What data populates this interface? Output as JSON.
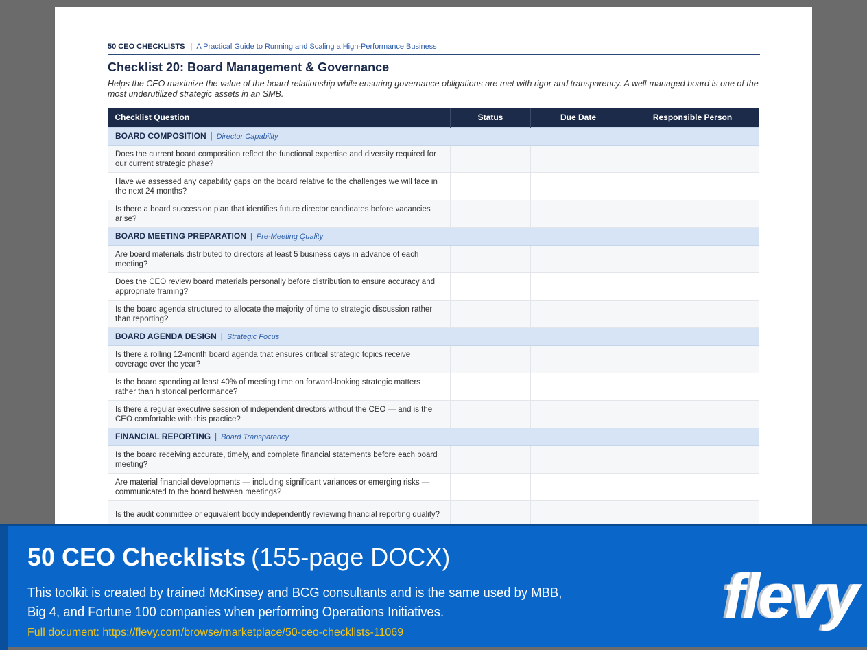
{
  "header": {
    "brand": "50 CEO CHECKLISTS",
    "separator": "|",
    "subtitle": "A Practical Guide to Running and Scaling a High-Performance Business"
  },
  "title": "Checklist 20: Board Management & Governance",
  "description": "Helps the CEO maximize the value of the board relationship while ensuring governance obligations are met with rigor and transparency. A well-managed board is one of the most underutilized strategic assets in an SMB.",
  "table": {
    "columns": [
      "Checklist Question",
      "Status",
      "Due Date",
      "Responsible Person"
    ],
    "sections": [
      {
        "name": "BOARD COMPOSITION",
        "separator": "|",
        "subtitle": "Director Capability",
        "questions": [
          "Does the current board composition reflect the functional expertise and diversity required for our current strategic phase?",
          "Have we assessed any capability gaps on the board relative to the challenges we will face in the next 24 months?",
          "Is there a board succession plan that identifies future director candidates before vacancies arise?"
        ]
      },
      {
        "name": "BOARD MEETING PREPARATION",
        "separator": "|",
        "subtitle": "Pre-Meeting Quality",
        "questions": [
          "Are board materials distributed to directors at least 5 business days in advance of each meeting?",
          "Does the CEO review board materials personally before distribution to ensure accuracy and appropriate framing?",
          "Is the board agenda structured to allocate the majority of time to strategic discussion rather than reporting?"
        ]
      },
      {
        "name": "BOARD AGENDA DESIGN",
        "separator": "|",
        "subtitle": "Strategic Focus",
        "questions": [
          "Is there a rolling 12-month board agenda that ensures critical strategic topics receive coverage over the year?",
          "Is the board spending at least 40% of meeting time on forward-looking strategic matters rather than historical performance?",
          "Is there a regular executive session of independent directors without the CEO — and is the CEO comfortable with this practice?"
        ]
      },
      {
        "name": "FINANCIAL REPORTING",
        "separator": "|",
        "subtitle": "Board Transparency",
        "questions": [
          "Is the board receiving accurate, timely, and complete financial statements before each board meeting?",
          "Are material financial developments — including significant variances or emerging risks — communicated to the board between meetings?",
          "Is the audit committee or equivalent body independently reviewing financial reporting quality?"
        ]
      }
    ]
  },
  "banner": {
    "title": "50 CEO Checklists",
    "format": "(155-page DOCX)",
    "description": [
      "This toolkit is created by trained McKinsey and BCG consultants and is the same used by MBB,",
      "Big 4, and Fortune 100 companies when performing Operations Initiatives."
    ],
    "link": "Full document: https://flevy.com/browse/marketplace/50-ceo-checklists-11069",
    "logo": "flevy"
  }
}
